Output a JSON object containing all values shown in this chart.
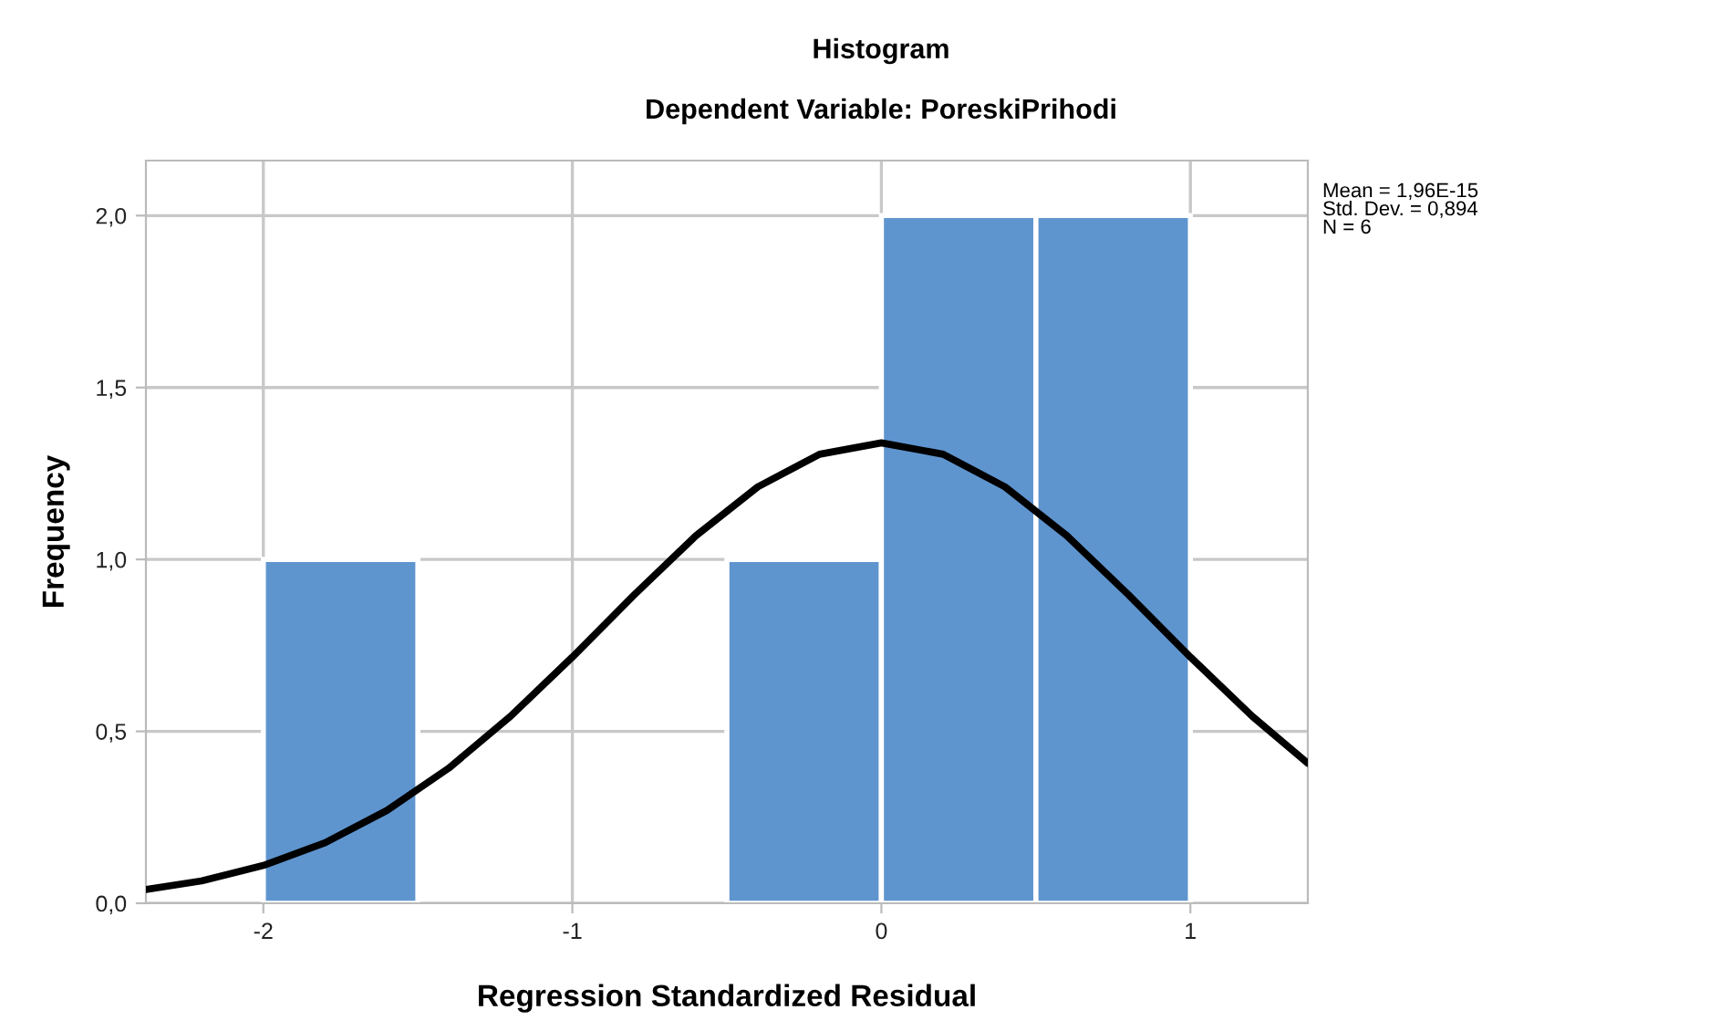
{
  "chart_data": {
    "type": "histogram",
    "title": "Histogram",
    "subtitle": "Dependent Variable: PoreskiPrihodi",
    "xlabel": "Regression Standardized Residual",
    "ylabel": "Frequency",
    "bins": [
      -2,
      -1.5,
      -1,
      -0.5,
      0,
      0.5,
      1
    ],
    "values": [
      1,
      0,
      0,
      1,
      2,
      2
    ],
    "color": "#5f95cf",
    "series": [
      {
        "type": "line",
        "color": "#000000",
        "x": [
          -2.38,
          -2.2,
          -2.0,
          -1.8,
          -1.6,
          -1.4,
          -1.2,
          -1.0,
          -0.8,
          -0.6,
          -0.4,
          -0.2,
          0,
          0.2,
          0.4,
          0.6,
          0.8,
          1.0,
          1.2,
          1.38
        ],
        "values": [
          0.04,
          0.065,
          0.11,
          0.176,
          0.27,
          0.393,
          0.544,
          0.716,
          0.897,
          1.069,
          1.211,
          1.306,
          1.339,
          1.306,
          1.211,
          1.069,
          0.897,
          0.716,
          0.544,
          0.407
        ]
      }
    ],
    "xlim": [
      -2.38,
      1.38
    ],
    "xticks": [
      -2,
      -1,
      0,
      1
    ],
    "ylim": [
      0,
      2.16
    ],
    "yticks": [
      {
        "value": 0,
        "label": "0,0"
      },
      {
        "value": 0.5,
        "label": "0,5"
      },
      {
        "value": 1,
        "label": "1,0"
      },
      {
        "value": 1.5,
        "label": "1,5"
      },
      {
        "value": 2,
        "label": "2,0"
      }
    ],
    "grid": true,
    "marker": "none",
    "line_style": "solid",
    "annotations": [
      "Mean = 1,96E-15\nStd. Dev. = 0,894\nN = 6"
    ]
  }
}
